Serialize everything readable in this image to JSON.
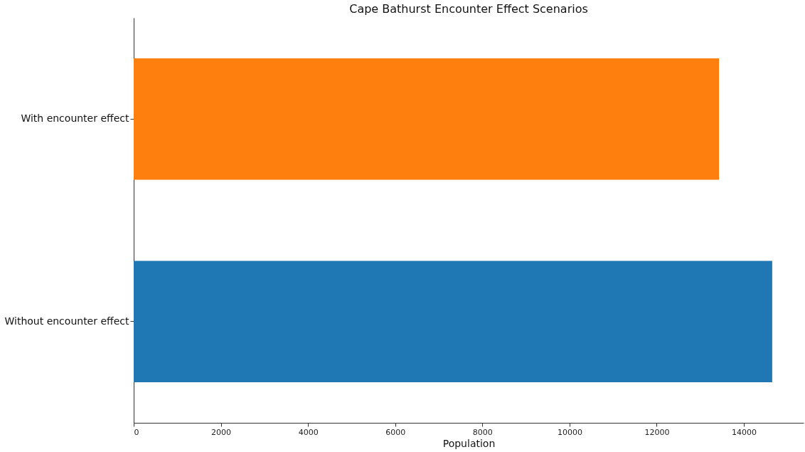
{
  "chart_data": {
    "type": "bar",
    "orientation": "horizontal",
    "title": "Cape Bathurst Encounter Effect Scenarios",
    "xlabel": "Population",
    "categories": [
      "With encounter effect",
      "Without encounter effect"
    ],
    "values": [
      13430,
      14650
    ],
    "colors": [
      "#ff7f0e",
      "#1f77b4"
    ],
    "xlim": [
      0,
      15370
    ],
    "xticks": [
      0,
      2000,
      4000,
      6000,
      8000,
      10000,
      12000,
      14000
    ],
    "grid": false
  }
}
